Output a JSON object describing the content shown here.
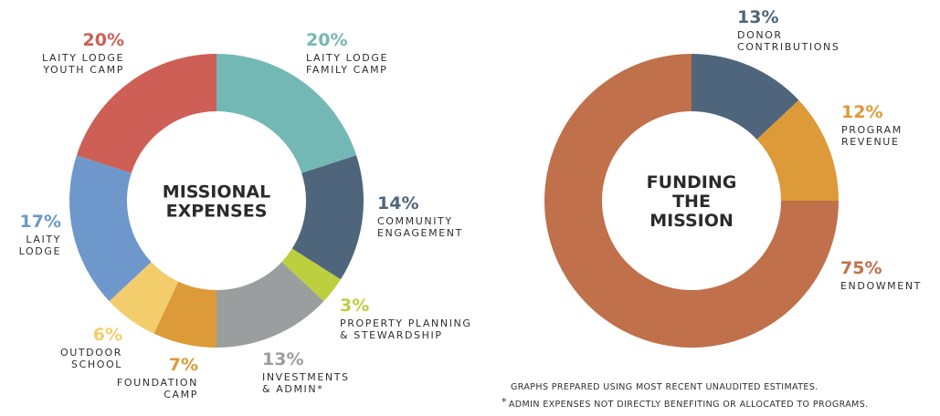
{
  "chart_data": [
    {
      "type": "pie",
      "center_label": [
        "MISSIONAL",
        "EXPENSES"
      ],
      "slices": [
        {
          "name": "LAITY LODGE FAMILY CAMP",
          "label_lines": [
            "LAITY LODGE",
            "FAMILY CAMP"
          ],
          "pct_label": "20%",
          "value": 20,
          "color": "#74b8b6"
        },
        {
          "name": "COMMUNITY ENGAGEMENT",
          "label_lines": [
            "COMMUNITY",
            "ENGAGEMENT"
          ],
          "pct_label": "14%",
          "value": 14,
          "color": "#4f657b"
        },
        {
          "name": "PROPERTY PLANNING & STEWARDSHIP",
          "label_lines": [
            "PROPERTY PLANNING",
            "& STEWARDSHIP"
          ],
          "pct_label": "3%",
          "value": 3,
          "color": "#bccf3e"
        },
        {
          "name": "INVESTMENTS & ADMIN*",
          "label_lines": [
            "INVESTMENTS",
            "& ADMIN*"
          ],
          "pct_label": "13%",
          "value": 13,
          "color": "#9b9e9f"
        },
        {
          "name": "FOUNDATION CAMP",
          "label_lines": [
            "FOUNDATION",
            "CAMP"
          ],
          "pct_label": "7%",
          "value": 7,
          "color": "#dc9a38"
        },
        {
          "name": "OUTDOOR SCHOOL",
          "label_lines": [
            "OUTDOOR",
            "SCHOOL"
          ],
          "pct_label": "6%",
          "value": 6,
          "color": "#f3cd6b"
        },
        {
          "name": "LAITY LODGE",
          "label_lines": [
            "LAITY",
            "LODGE"
          ],
          "pct_label": "17%",
          "value": 17,
          "color": "#6e98cc"
        },
        {
          "name": "LAITY LODGE YOUTH CAMP",
          "label_lines": [
            "LAITY LODGE",
            "YOUTH CAMP"
          ],
          "pct_label": "20%",
          "value": 20,
          "color": "#cd5f57"
        }
      ]
    },
    {
      "type": "pie",
      "center_label": [
        "FUNDING",
        "THE",
        "MISSION"
      ],
      "slices": [
        {
          "name": "DONOR CONTRIBUTIONS",
          "label_lines": [
            "DONOR",
            "CONTRIBUTIONS"
          ],
          "pct_label": "13%",
          "value": 13,
          "color": "#4f657b"
        },
        {
          "name": "PROGRAM REVENUE",
          "label_lines": [
            "PROGRAM",
            "REVENUE"
          ],
          "pct_label": "12%",
          "value": 12,
          "color": "#dc9a38"
        },
        {
          "name": "ENDOWMENT",
          "label_lines": [
            "ENDOWMENT"
          ],
          "pct_label": "75%",
          "value": 75,
          "color": "#c0704a"
        }
      ]
    }
  ],
  "footnotes": {
    "line1": "GRAPHS PREPARED USING MOST RECENT UNAUDITED ESTIMATES.",
    "line2_mark": "*",
    "line2": "ADMIN EXPENSES NOT DIRECTLY BENEFITING OR ALLOCATED TO PROGRAMS."
  }
}
